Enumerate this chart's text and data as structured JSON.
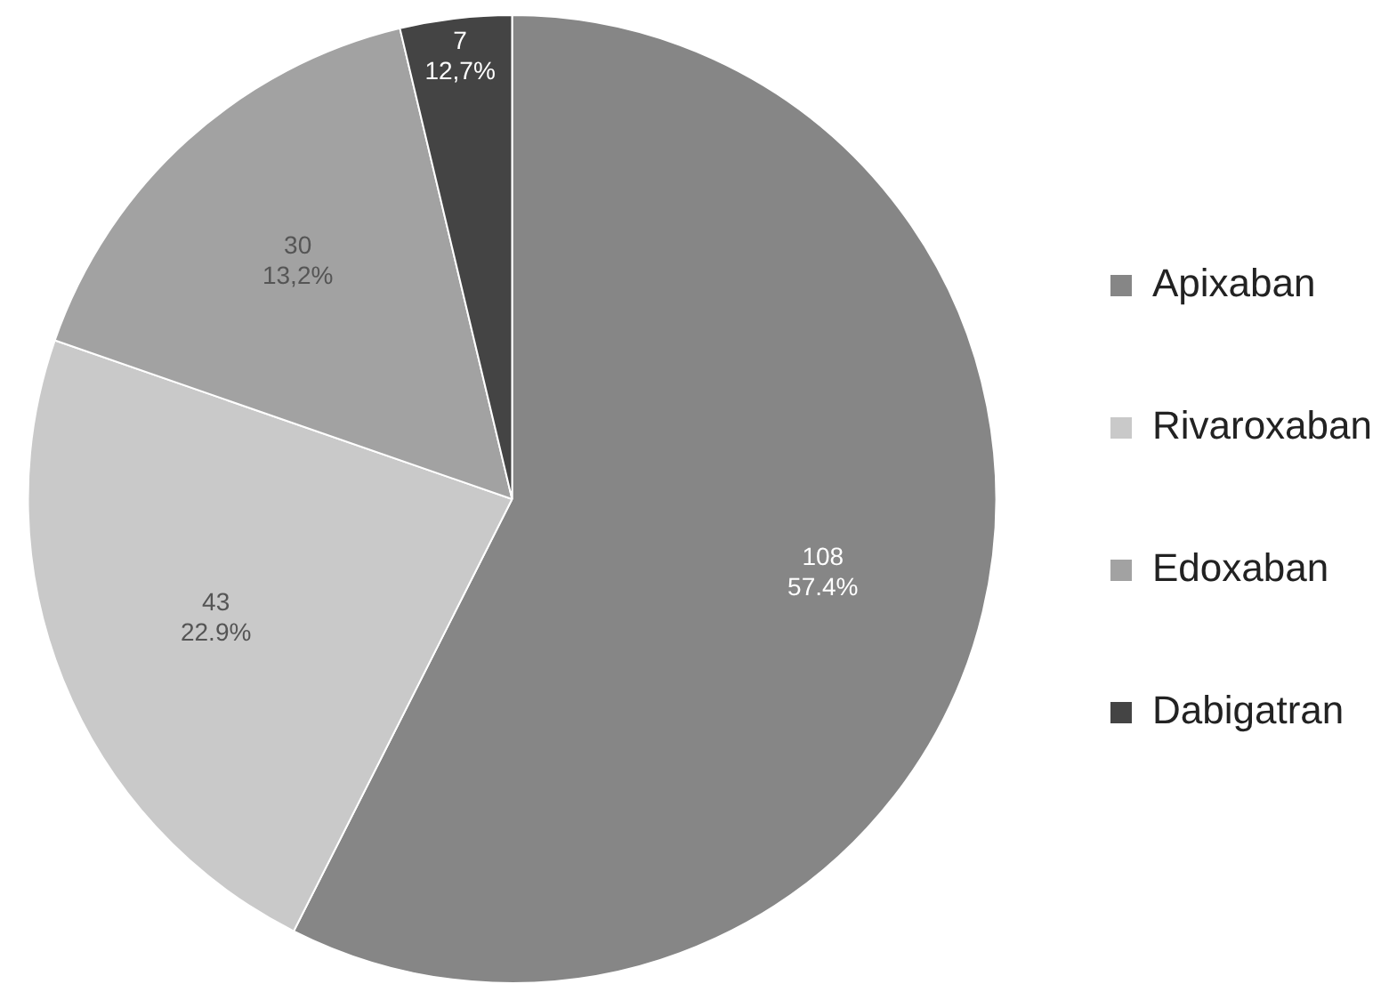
{
  "chart_data": {
    "type": "pie",
    "categories": [
      "Apixaban",
      "Rivaroxaban",
      "Edoxaban",
      "Dabigatran"
    ],
    "values": [
      108,
      43,
      30,
      7
    ],
    "colors": [
      "#868686",
      "#c9c9c9",
      "#a2a2a2",
      "#444444"
    ],
    "value_labels": [
      "108\n57.4%",
      "43\n22.9%",
      "30\n13,2%",
      "7\n12,7%"
    ],
    "legend": "right"
  }
}
